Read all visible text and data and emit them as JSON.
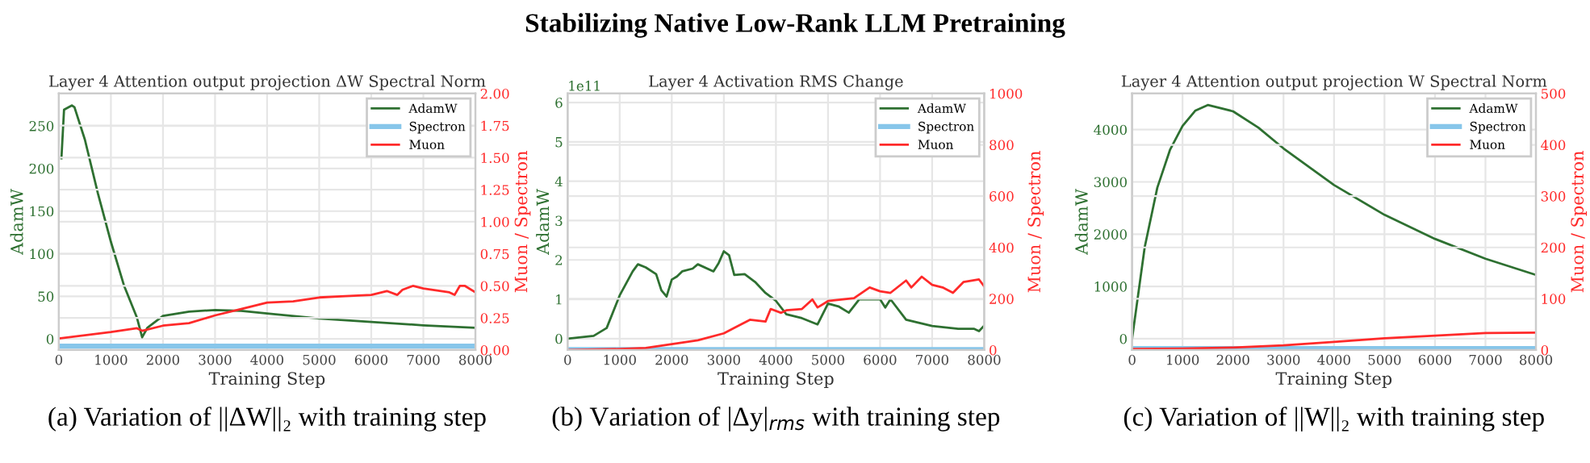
{
  "chart_data": [
    {
      "type": "line",
      "title": "Layer 4 Attention output projection ΔW Spectral Norm",
      "xlabel": "Training Step",
      "ylabel": "AdamW",
      "y2label": "Muon / Spectron",
      "xlim": [
        0,
        8000
      ],
      "xticks": [
        0,
        1000,
        2000,
        3000,
        4000,
        5000,
        6000,
        7000,
        8000
      ],
      "ylim": [
        -13,
        288
      ],
      "yticks": [
        0,
        50,
        100,
        150,
        200,
        250
      ],
      "y2lim": [
        0,
        2
      ],
      "y2ticks": [
        {
          "value": 0,
          "label": "0.00"
        },
        {
          "value": 0.25,
          "label": "0.25"
        },
        {
          "value": 0.5,
          "label": "0.50"
        },
        {
          "value": 0.75,
          "label": "0.75"
        },
        {
          "value": 1,
          "label": "1.00"
        },
        {
          "value": 1.25,
          "label": "1.25"
        },
        {
          "value": 1.5,
          "label": "1.50"
        },
        {
          "value": 1.75,
          "label": "1.75"
        },
        {
          "value": 2,
          "label": "2.00"
        }
      ],
      "grid": true,
      "legend": "top right",
      "annotations": [
        "Stabilizing Native Low-Rank LLM Pretraining",
        "(a) Variation of ||ΔW||₂ with training step"
      ],
      "series": [
        {
          "name": "AdamW",
          "color": "#2e7031",
          "axis": "y",
          "x": [
            50,
            100,
            250,
            300,
            500,
            750,
            1000,
            1250,
            1500,
            1600,
            1700,
            2000,
            2500,
            3000,
            3500,
            4000,
            5000,
            6000,
            7000,
            8000
          ],
          "values": [
            212,
            269,
            274,
            272,
            234,
            171,
            114,
            63,
            25,
            2,
            13,
            27,
            32,
            34,
            33,
            30,
            24,
            20,
            16,
            13
          ]
        },
        {
          "name": "Spectron",
          "color": "#87c6ea",
          "axis": "y2",
          "x": [
            0,
            2000,
            4000,
            6000,
            8000
          ],
          "values": [
            0.03,
            0.03,
            0.03,
            0.03,
            0.03
          ]
        },
        {
          "name": "Muon",
          "color": "#ff2a2a",
          "axis": "y2",
          "x": [
            0,
            1000,
            1500,
            1600,
            2000,
            2500,
            3000,
            3500,
            4000,
            4500,
            5000,
            5500,
            6000,
            6300,
            6500,
            6600,
            6800,
            7000,
            7500,
            7600,
            7700,
            7800,
            8000
          ],
          "values": [
            0.09,
            0.14,
            0.17,
            0.15,
            0.19,
            0.21,
            0.27,
            0.32,
            0.37,
            0.38,
            0.41,
            0.42,
            0.43,
            0.46,
            0.43,
            0.47,
            0.5,
            0.48,
            0.45,
            0.43,
            0.5,
            0.5,
            0.45
          ]
        }
      ]
    },
    {
      "type": "line",
      "title": "Layer 4 Activation RMS Change",
      "xlabel": "Training Step",
      "ylabel": "AdamW",
      "y2label": "Muon / Spectron",
      "xlim": [
        0,
        8000
      ],
      "xticks": [
        0,
        1000,
        2000,
        3000,
        4000,
        5000,
        6000,
        7000,
        8000
      ],
      "ylim": [
        -0.29,
        6.23
      ],
      "yticks": [
        0,
        1,
        2,
        3,
        4,
        5,
        6
      ],
      "y2lim": [
        0,
        1000
      ],
      "y2ticks": [
        0,
        200,
        400,
        600,
        800,
        1000
      ],
      "grid": true,
      "legend": "top right",
      "annotations": [
        "1e11",
        "(b) Variation of |Δy|$_{rms}$ with training step"
      ],
      "series": [
        {
          "name": "AdamW",
          "color": "#2e7031",
          "axis": "y",
          "x": [
            0,
            500,
            750,
            1000,
            1250,
            1350,
            1500,
            1700,
            1800,
            1900,
            2000,
            2100,
            2200,
            2400,
            2500,
            2800,
            2900,
            3000,
            3100,
            3200,
            3400,
            3600,
            3800,
            4000,
            4200,
            4500,
            4800,
            5000,
            5200,
            5400,
            5600,
            6000,
            6100,
            6200,
            6500,
            7000,
            7500,
            7800,
            7900,
            8000
          ],
          "values": [
            0,
            0.07,
            0.27,
            1.1,
            1.71,
            1.89,
            1.81,
            1.64,
            1.23,
            1.07,
            1.5,
            1.58,
            1.71,
            1.78,
            1.89,
            1.71,
            1.92,
            2.22,
            2.12,
            1.62,
            1.64,
            1.44,
            1.16,
            0.96,
            0.62,
            0.52,
            0.36,
            0.89,
            0.82,
            0.66,
            1.0,
            1.0,
            0.79,
            1.0,
            0.48,
            0.32,
            0.25,
            0.25,
            0.19,
            0.33
          ]
        },
        {
          "name": "Spectron",
          "color": "#87c6ea",
          "axis": "y2",
          "x": [
            0,
            2000,
            4000,
            6000,
            8000
          ],
          "values": [
            2,
            2,
            2,
            2,
            2
          ]
        },
        {
          "name": "Muon",
          "color": "#ff2a2a",
          "axis": "y2",
          "x": [
            0,
            1000,
            1500,
            2000,
            2500,
            3000,
            3200,
            3500,
            3800,
            3900,
            4100,
            4200,
            4500,
            4700,
            4800,
            5000,
            5500,
            5800,
            6000,
            6200,
            6500,
            6600,
            6800,
            7000,
            7200,
            7400,
            7600,
            7900,
            8000
          ],
          "values": [
            0,
            4,
            8,
            23,
            38,
            65,
            86,
            118,
            111,
            160,
            145,
            155,
            160,
            197,
            166,
            191,
            202,
            244,
            229,
            223,
            271,
            244,
            286,
            254,
            244,
            223,
            265,
            275,
            248
          ]
        }
      ]
    },
    {
      "type": "line",
      "title": "Layer 4 Attention output projection W Spectral Norm",
      "xlabel": "Training Step",
      "ylabel": "AdamW",
      "y2label": "Muon / Spectron",
      "xlim": [
        0,
        8000
      ],
      "xticks": [
        0,
        1000,
        2000,
        3000,
        4000,
        5000,
        6000,
        7000,
        8000
      ],
      "ylim": [
        -216,
        4690
      ],
      "yticks": [
        0,
        1000,
        2000,
        3000,
        4000
      ],
      "y2lim": [
        0,
        500
      ],
      "y2ticks": [
        0,
        100,
        200,
        300,
        400,
        500
      ],
      "grid": true,
      "legend": "top right",
      "annotations": [
        "(c) Variation of ||W||₂ with training step"
      ],
      "series": [
        {
          "name": "AdamW",
          "color": "#2e7031",
          "axis": "y",
          "x": [
            0,
            250,
            500,
            750,
            1000,
            1250,
            1500,
            2000,
            2500,
            3000,
            4000,
            5000,
            6000,
            7000,
            8000
          ],
          "values": [
            0,
            1750,
            2890,
            3610,
            4070,
            4360,
            4470,
            4350,
            4040,
            3640,
            2940,
            2370,
            1910,
            1530,
            1220
          ]
        },
        {
          "name": "Spectron",
          "color": "#87c6ea",
          "axis": "y2",
          "x": [
            0,
            2000,
            4000,
            6000,
            8000
          ],
          "values": [
            3,
            3,
            3,
            3,
            3
          ]
        },
        {
          "name": "Muon",
          "color": "#ff2a2a",
          "axis": "y2",
          "x": [
            0,
            1000,
            2000,
            3000,
            4000,
            5000,
            6000,
            7000,
            8000
          ],
          "values": [
            2,
            3,
            5,
            9,
            16,
            23,
            28,
            33,
            34
          ]
        }
      ]
    }
  ]
}
